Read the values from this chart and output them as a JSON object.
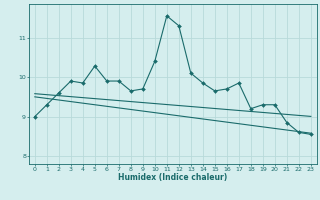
{
  "xlabel": "Humidex (Indice chaleur)",
  "ylabel": "",
  "background_color": "#d5eeee",
  "grid_color": "#b8dada",
  "line_color": "#1a6b6b",
  "xlim": [
    -0.5,
    23.5
  ],
  "ylim": [
    7.8,
    11.85
  ],
  "yticks": [
    8,
    9,
    10,
    11
  ],
  "xticks": [
    0,
    1,
    2,
    3,
    4,
    5,
    6,
    7,
    8,
    9,
    10,
    11,
    12,
    13,
    14,
    15,
    16,
    17,
    18,
    19,
    20,
    21,
    22,
    23
  ],
  "main_series": [
    9.0,
    9.3,
    9.6,
    9.9,
    9.85,
    10.28,
    9.9,
    9.9,
    9.65,
    9.7,
    10.4,
    11.55,
    11.3,
    10.1,
    9.85,
    9.65,
    9.7,
    9.85,
    9.2,
    9.3,
    9.3,
    8.85,
    8.6,
    8.55
  ],
  "reg_line1": [
    9.58,
    9.555,
    9.53,
    9.505,
    9.48,
    9.455,
    9.43,
    9.405,
    9.38,
    9.355,
    9.33,
    9.305,
    9.28,
    9.255,
    9.23,
    9.205,
    9.18,
    9.155,
    9.13,
    9.105,
    9.08,
    9.055,
    9.03,
    9.005
  ],
  "reg_line2": [
    9.5,
    9.46,
    9.42,
    9.38,
    9.34,
    9.3,
    9.26,
    9.22,
    9.18,
    9.14,
    9.1,
    9.06,
    9.02,
    8.98,
    8.94,
    8.9,
    8.86,
    8.82,
    8.78,
    8.74,
    8.7,
    8.66,
    8.62,
    8.58
  ]
}
